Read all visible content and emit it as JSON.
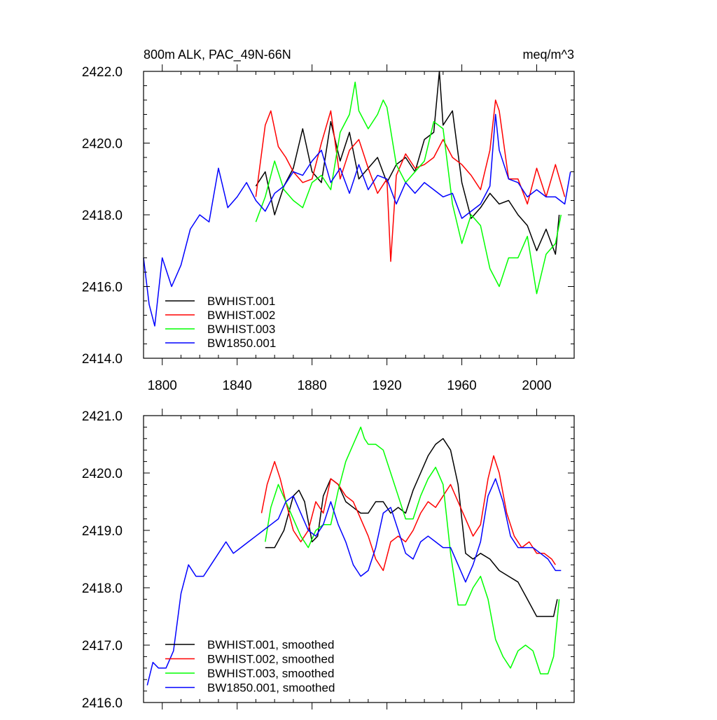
{
  "chart_data": [
    {
      "type": "line",
      "title_left": "800m ALK, PAC_49N-66N",
      "title_right": "meq/m^3",
      "xlim": [
        1790,
        2020
      ],
      "ylim": [
        2414.0,
        2422.0
      ],
      "x_ticks": [
        1800,
        1840,
        1880,
        1920,
        1960,
        2000
      ],
      "x_tick_labels": [
        "1800",
        "1840",
        "1880",
        "1920",
        "1960",
        "2000"
      ],
      "y_ticks": [
        2414.0,
        2416.0,
        2418.0,
        2420.0,
        2422.0
      ],
      "y_tick_labels": [
        "2414.0",
        "2416.0",
        "2418.0",
        "2420.0",
        "2422.0"
      ],
      "legend_position": "bottom-left",
      "series": [
        {
          "name": "BWHIST.001",
          "color": "#000000",
          "x": [
            1850,
            1855,
            1860,
            1865,
            1870,
            1875,
            1880,
            1885,
            1890,
            1895,
            1900,
            1905,
            1910,
            1915,
            1920,
            1925,
            1930,
            1935,
            1940,
            1945,
            1948,
            1950,
            1955,
            1960,
            1965,
            1970,
            1975,
            1980,
            1985,
            1990,
            1995,
            2000,
            2005,
            2010,
            2012
          ],
          "values": [
            2418.8,
            2419.2,
            2418.0,
            2418.8,
            2419.3,
            2420.4,
            2419.2,
            2418.9,
            2420.6,
            2419.5,
            2420.3,
            2419.0,
            2419.3,
            2419.6,
            2418.9,
            2419.4,
            2419.6,
            2419.2,
            2420.1,
            2420.3,
            2422.0,
            2420.5,
            2420.9,
            2418.9,
            2417.9,
            2418.2,
            2418.6,
            2418.3,
            2418.4,
            2418.0,
            2417.7,
            2417.0,
            2417.6,
            2416.9,
            2418.0
          ]
        },
        {
          "name": "BWHIST.002",
          "color": "#ff0000",
          "x": [
            1850,
            1855,
            1858,
            1862,
            1866,
            1870,
            1875,
            1880,
            1885,
            1890,
            1895,
            1900,
            1905,
            1910,
            1915,
            1920,
            1922,
            1925,
            1930,
            1935,
            1940,
            1945,
            1950,
            1955,
            1960,
            1965,
            1970,
            1975,
            1978,
            1980,
            1985,
            1990,
            1995,
            2000,
            2005,
            2010,
            2015
          ],
          "values": [
            2418.5,
            2420.5,
            2420.9,
            2419.9,
            2419.6,
            2419.2,
            2418.9,
            2419.0,
            2420.0,
            2420.9,
            2419.0,
            2419.8,
            2420.1,
            2419.3,
            2418.6,
            2419.0,
            2416.7,
            2419.1,
            2419.7,
            2419.3,
            2419.4,
            2419.6,
            2420.1,
            2419.6,
            2419.4,
            2419.1,
            2418.7,
            2419.8,
            2421.2,
            2420.9,
            2419.0,
            2419.0,
            2418.3,
            2419.3,
            2418.5,
            2419.4,
            2418.5
          ]
        },
        {
          "name": "BWHIST.003",
          "color": "#00ff00",
          "x": [
            1850,
            1855,
            1860,
            1865,
            1870,
            1875,
            1880,
            1885,
            1890,
            1895,
            1900,
            1903,
            1905,
            1910,
            1915,
            1918,
            1920,
            1925,
            1930,
            1935,
            1940,
            1945,
            1950,
            1955,
            1960,
            1965,
            1970,
            1975,
            1980,
            1985,
            1990,
            1995,
            2000,
            2005,
            2010,
            2013
          ],
          "values": [
            2417.8,
            2418.5,
            2419.5,
            2418.7,
            2418.4,
            2418.2,
            2418.9,
            2419.1,
            2418.7,
            2420.3,
            2420.8,
            2421.7,
            2420.9,
            2420.4,
            2420.8,
            2421.2,
            2421.0,
            2419.4,
            2418.9,
            2419.2,
            2419.5,
            2420.6,
            2420.4,
            2418.3,
            2417.2,
            2418.0,
            2417.7,
            2416.5,
            2416.0,
            2416.8,
            2416.8,
            2417.4,
            2415.8,
            2416.9,
            2417.2,
            2418.0
          ]
        },
        {
          "name": "BW1850.001",
          "color": "#0000ff",
          "x": [
            1790,
            1793,
            1796,
            1800,
            1805,
            1810,
            1815,
            1820,
            1825,
            1830,
            1835,
            1840,
            1845,
            1850,
            1855,
            1860,
            1865,
            1870,
            1875,
            1880,
            1885,
            1890,
            1895,
            1900,
            1905,
            1910,
            1915,
            1920,
            1925,
            1930,
            1935,
            1940,
            1945,
            1950,
            1955,
            1960,
            1965,
            1970,
            1975,
            1978,
            1980,
            1985,
            1990,
            1995,
            2000,
            2005,
            2010,
            2015,
            2018
          ],
          "values": [
            2416.8,
            2415.5,
            2414.9,
            2416.8,
            2416.0,
            2416.6,
            2417.6,
            2418.0,
            2417.8,
            2419.3,
            2418.2,
            2418.5,
            2418.9,
            2418.4,
            2418.1,
            2418.6,
            2418.8,
            2419.2,
            2419.1,
            2419.5,
            2419.8,
            2418.9,
            2419.3,
            2418.6,
            2419.4,
            2418.7,
            2419.1,
            2419.0,
            2418.3,
            2418.9,
            2418.6,
            2418.9,
            2418.7,
            2418.5,
            2418.6,
            2417.9,
            2418.1,
            2418.3,
            2418.8,
            2420.8,
            2419.8,
            2419.0,
            2418.9,
            2418.5,
            2418.7,
            2418.5,
            2418.5,
            2418.3,
            2419.2
          ]
        }
      ]
    },
    {
      "type": "line",
      "xlim": [
        1790,
        2020
      ],
      "ylim": [
        2416.0,
        2421.0
      ],
      "x_ticks": [
        1800,
        1840,
        1880,
        1920,
        1960,
        2000
      ],
      "y_ticks": [
        2416.0,
        2417.0,
        2418.0,
        2419.0,
        2420.0,
        2421.0
      ],
      "y_tick_labels": [
        "2416.0",
        "2417.0",
        "2418.0",
        "2419.0",
        "2420.0",
        "2421.0"
      ],
      "legend_position": "bottom-left",
      "series": [
        {
          "name": "BWHIST.001, smoothed",
          "color": "#000000",
          "x": [
            1855,
            1860,
            1865,
            1870,
            1873,
            1876,
            1880,
            1883,
            1886,
            1890,
            1894,
            1898,
            1902,
            1906,
            1910,
            1914,
            1918,
            1922,
            1926,
            1930,
            1934,
            1938,
            1942,
            1946,
            1950,
            1954,
            1958,
            1962,
            1966,
            1970,
            1975,
            1980,
            1985,
            1990,
            1995,
            2000,
            2005,
            2009,
            2011
          ],
          "values": [
            2418.7,
            2418.7,
            2419.0,
            2419.6,
            2419.7,
            2419.5,
            2418.8,
            2418.9,
            2419.6,
            2419.9,
            2419.8,
            2419.5,
            2419.4,
            2419.3,
            2419.3,
            2419.5,
            2419.5,
            2419.3,
            2419.4,
            2419.3,
            2419.7,
            2420.0,
            2420.3,
            2420.5,
            2420.6,
            2420.4,
            2419.8,
            2418.6,
            2418.5,
            2418.6,
            2418.5,
            2418.3,
            2418.2,
            2418.1,
            2417.8,
            2417.5,
            2417.5,
            2417.5,
            2417.8
          ]
        },
        {
          "name": "BWHIST.002, smoothed",
          "color": "#ff0000",
          "x": [
            1853,
            1856,
            1860,
            1863,
            1866,
            1870,
            1874,
            1878,
            1882,
            1886,
            1890,
            1894,
            1898,
            1902,
            1906,
            1910,
            1914,
            1918,
            1922,
            1926,
            1930,
            1934,
            1938,
            1942,
            1946,
            1950,
            1954,
            1958,
            1962,
            1966,
            1970,
            1974,
            1977,
            1980,
            1984,
            1988,
            1992,
            1996,
            2000,
            2004,
            2008,
            2010
          ],
          "values": [
            2419.3,
            2419.8,
            2420.2,
            2419.9,
            2419.5,
            2419.0,
            2418.8,
            2419.0,
            2419.5,
            2419.3,
            2419.9,
            2419.8,
            2419.6,
            2419.5,
            2419.2,
            2418.9,
            2418.5,
            2418.3,
            2418.8,
            2418.9,
            2418.8,
            2419.0,
            2419.3,
            2419.5,
            2419.4,
            2419.6,
            2419.8,
            2419.5,
            2419.2,
            2418.9,
            2419.1,
            2419.9,
            2420.3,
            2420.0,
            2419.3,
            2418.9,
            2418.7,
            2418.8,
            2418.6,
            2418.6,
            2418.5,
            2418.4
          ]
        },
        {
          "name": "BWHIST.003, smoothed",
          "color": "#00ff00",
          "x": [
            1855,
            1858,
            1862,
            1866,
            1870,
            1874,
            1878,
            1882,
            1886,
            1890,
            1894,
            1898,
            1902,
            1906,
            1908,
            1910,
            1914,
            1918,
            1922,
            1926,
            1930,
            1934,
            1938,
            1942,
            1946,
            1950,
            1954,
            1958,
            1962,
            1966,
            1970,
            1974,
            1978,
            1982,
            1986,
            1990,
            1994,
            1998,
            2002,
            2006,
            2009,
            2012
          ],
          "values": [
            2418.8,
            2419.4,
            2419.8,
            2419.5,
            2419.2,
            2418.9,
            2418.7,
            2419.0,
            2419.1,
            2419.1,
            2419.7,
            2420.2,
            2420.5,
            2420.8,
            2420.6,
            2420.5,
            2420.5,
            2420.4,
            2420.0,
            2419.6,
            2419.2,
            2419.2,
            2419.6,
            2419.9,
            2420.1,
            2419.8,
            2418.6,
            2417.7,
            2417.7,
            2418.0,
            2418.2,
            2417.8,
            2417.1,
            2416.8,
            2416.6,
            2416.9,
            2417.0,
            2416.9,
            2416.5,
            2416.5,
            2416.8,
            2417.8
          ]
        },
        {
          "name": "BW1850.001, smoothed",
          "color": "#0000ff",
          "x": [
            1792,
            1795,
            1798,
            1802,
            1806,
            1810,
            1814,
            1818,
            1822,
            1826,
            1830,
            1834,
            1838,
            1842,
            1846,
            1850,
            1854,
            1858,
            1862,
            1866,
            1870,
            1874,
            1878,
            1882,
            1886,
            1890,
            1894,
            1898,
            1902,
            1906,
            1910,
            1914,
            1918,
            1922,
            1926,
            1930,
            1934,
            1938,
            1942,
            1946,
            1950,
            1954,
            1958,
            1962,
            1966,
            1970,
            1974,
            1978,
            1982,
            1986,
            1990,
            1994,
            1998,
            2002,
            2006,
            2010,
            2013
          ],
          "values": [
            2416.3,
            2416.7,
            2416.6,
            2416.6,
            2416.9,
            2417.9,
            2418.4,
            2418.2,
            2418.2,
            2418.4,
            2418.6,
            2418.8,
            2418.6,
            2418.7,
            2418.8,
            2418.9,
            2419.0,
            2419.1,
            2419.2,
            2419.5,
            2419.6,
            2419.3,
            2419.0,
            2418.9,
            2419.1,
            2419.5,
            2419.1,
            2418.8,
            2418.4,
            2418.2,
            2418.3,
            2418.7,
            2419.3,
            2419.4,
            2419.0,
            2418.6,
            2418.5,
            2418.8,
            2418.9,
            2418.8,
            2418.7,
            2418.7,
            2418.4,
            2418.1,
            2418.4,
            2418.8,
            2419.6,
            2419.9,
            2419.5,
            2418.9,
            2418.7,
            2418.7,
            2418.7,
            2418.6,
            2418.5,
            2418.3,
            2418.3
          ]
        }
      ]
    }
  ]
}
